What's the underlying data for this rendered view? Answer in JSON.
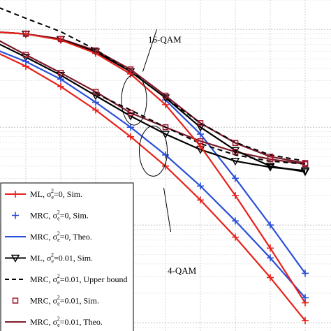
{
  "chart_data": {
    "type": "line",
    "title": "",
    "xlabel": "",
    "ylabel": "",
    "y_scale": "log",
    "grid": true,
    "legend_position": "bottom-left",
    "annotations": [
      {
        "id": "qam16",
        "text": "16-QAM"
      },
      {
        "id": "qam4",
        "text": "4-QAM"
      }
    ],
    "series": [
      {
        "name": "ML, σ_e^2=0, Sim.",
        "label_parts": [
          "ML, σ",
          "e",
          "2",
          "=0, Sim."
        ],
        "color": "#e8201a",
        "line": "solid",
        "marker": "plus",
        "points": [
          [
            0,
            0.62
          ],
          [
            1,
            0.42
          ],
          [
            2,
            0.26
          ],
          [
            3,
            0.15
          ],
          [
            4,
            0.08
          ],
          [
            5,
            0.04
          ],
          [
            6,
            0.018
          ],
          [
            7,
            0.0075
          ],
          [
            8,
            0.0029
          ],
          [
            9,
            0.00105
          ]
        ]
      },
      {
        "name": "ML, σ_e^2=0, Sim.",
        "label_parts": [
          "ML, σ",
          "e",
          "2",
          "=0, Sim."
        ],
        "color": "#e8201a",
        "line": "solid",
        "marker": "plus",
        "points": [
          [
            0,
            0.95
          ],
          [
            1,
            0.9
          ],
          [
            2,
            0.78
          ],
          [
            3,
            0.57
          ],
          [
            4,
            0.35
          ],
          [
            5,
            0.17
          ],
          [
            6,
            0.064
          ],
          [
            7,
            0.02
          ],
          [
            8,
            0.0058
          ],
          [
            9,
            0.0016
          ]
        ]
      },
      {
        "name": "MRC, σ_e^2=0, Sim.",
        "label_parts": [
          "MRC, σ",
          "e",
          "2",
          "=0, Sim."
        ],
        "color": "#2a4fd8",
        "line": "none",
        "marker": "plus",
        "points": [
          [
            1,
            0.47
          ],
          [
            2,
            0.31
          ],
          [
            3,
            0.18
          ],
          [
            4,
            0.1
          ],
          [
            5,
            0.052
          ],
          [
            6,
            0.025
          ],
          [
            7,
            0.011
          ],
          [
            8,
            0.0046
          ],
          [
            9,
            0.0018
          ]
        ]
      },
      {
        "name": "MRC, σ_e^2=0, Theo.",
        "label_parts": [
          "MRC, σ",
          "e",
          "2",
          "=0, Theo."
        ],
        "color": "#2a4fd8",
        "line": "solid",
        "marker": "none",
        "points": [
          [
            0,
            0.65
          ],
          [
            1,
            0.47
          ],
          [
            2,
            0.31
          ],
          [
            3,
            0.18
          ],
          [
            4,
            0.1
          ],
          [
            5,
            0.052
          ],
          [
            6,
            0.025
          ],
          [
            7,
            0.011
          ],
          [
            8,
            0.0046
          ],
          [
            9,
            0.0018
          ]
        ]
      },
      {
        "name": "MRC, σ_e^2=0, Theo.",
        "label_parts": [
          "MRC, σ",
          "e",
          "2",
          "=0, Theo."
        ],
        "color": "#2a4fd8",
        "line": "solid",
        "marker": "plus",
        "points": [
          [
            5,
            0.19
          ],
          [
            6,
            0.085
          ],
          [
            7,
            0.03
          ],
          [
            8,
            0.01
          ],
          [
            9,
            0.0032
          ]
        ]
      },
      {
        "name": "ML, σ_e^2=0.01, Sim.",
        "label_parts": [
          "ML, σ",
          "e",
          "2",
          "=0.01, Sim."
        ],
        "color": "#000000",
        "line": "solid",
        "marker": "triangle-down",
        "points": [
          [
            0,
            0.78
          ],
          [
            1,
            0.52
          ],
          [
            2,
            0.34
          ],
          [
            3,
            0.21
          ],
          [
            4,
            0.13
          ],
          [
            5,
            0.085
          ],
          [
            6,
            0.059
          ],
          [
            7,
            0.045
          ],
          [
            8,
            0.039
          ],
          [
            9,
            0.036
          ]
        ]
      },
      {
        "name": "ML, σ_e^2=0.01, Sim.",
        "label_parts": [
          "ML, σ",
          "e",
          "2",
          "=0.01, Sim."
        ],
        "color": "#000000",
        "line": "solid",
        "marker": "triangle-down",
        "points": [
          [
            0,
            0.95
          ],
          [
            1,
            0.9
          ],
          [
            2,
            0.79
          ],
          [
            3,
            0.59
          ],
          [
            4,
            0.37
          ],
          [
            5,
            0.2
          ],
          [
            6,
            0.1
          ],
          [
            7,
            0.058
          ],
          [
            8,
            0.04
          ],
          [
            9,
            0.035
          ]
        ]
      },
      {
        "name": "MRC, σ_e^2=0.01, Upper bound",
        "label_parts": [
          "MRC, σ",
          "e",
          "2",
          "=0.01, Upper bound"
        ],
        "color": "#000000",
        "line": "dashed",
        "marker": "none",
        "points": [
          [
            0,
            1.8
          ],
          [
            1,
            1.3
          ],
          [
            2,
            0.95
          ],
          [
            3,
            0.62
          ],
          [
            4,
            0.37
          ],
          [
            5,
            0.2
          ],
          [
            6,
            0.11
          ],
          [
            7,
            0.07
          ],
          [
            8,
            0.052
          ],
          [
            9,
            0.045
          ]
        ]
      },
      {
        "name": "MRC, σ_e^2=0.01, Upper bound",
        "label_parts": [
          "MRC, σ",
          "e",
          "2",
          "=0.01, Upper bound"
        ],
        "color": "#000000",
        "line": "dashed",
        "marker": "none",
        "points": [
          [
            3,
            0.22
          ],
          [
            4,
            0.15
          ],
          [
            5,
            0.1
          ],
          [
            6,
            0.068
          ],
          [
            7,
            0.052
          ],
          [
            8,
            0.045
          ],
          [
            9,
            0.042
          ]
        ]
      },
      {
        "name": "MRC, σ_e^2=0.01, Sim.",
        "label_parts": [
          "MRC, σ",
          "e",
          "2",
          "=0.01, Sim."
        ],
        "color": "#a0162c",
        "line": "none",
        "marker": "square",
        "points": [
          [
            0,
            0.85
          ],
          [
            1,
            0.55
          ],
          [
            2,
            0.36
          ],
          [
            3,
            0.23
          ],
          [
            4,
            0.14
          ],
          [
            5,
            0.1
          ],
          [
            6,
            0.072
          ],
          [
            7,
            0.056
          ],
          [
            8,
            0.047
          ],
          [
            9,
            0.042
          ]
        ]
      },
      {
        "name": "MRC, σ_e^2=0.01, Sim.",
        "label_parts": [
          "MRC, σ",
          "e",
          "2",
          "=0.01, Sim."
        ],
        "color": "#a0162c",
        "line": "none",
        "marker": "square",
        "points": [
          [
            0,
            0.95
          ],
          [
            1,
            0.9
          ],
          [
            2,
            0.8
          ],
          [
            3,
            0.61
          ],
          [
            4,
            0.39
          ],
          [
            5,
            0.21
          ],
          [
            6,
            0.11
          ],
          [
            7,
            0.069
          ],
          [
            8,
            0.05
          ],
          [
            9,
            0.043
          ]
        ]
      },
      {
        "name": "MRC, σ_e^2=0.01, Theo.",
        "label_parts": [
          "MRC, σ",
          "e",
          "2",
          "=0.01, Theo."
        ],
        "color": "#7b1a2a",
        "line": "solid",
        "marker": "none",
        "points": [
          [
            0,
            0.85
          ],
          [
            1,
            0.55
          ],
          [
            2,
            0.36
          ],
          [
            3,
            0.23
          ],
          [
            4,
            0.14
          ],
          [
            5,
            0.1
          ],
          [
            6,
            0.072
          ],
          [
            7,
            0.056
          ],
          [
            8,
            0.047
          ],
          [
            9,
            0.042
          ]
        ]
      },
      {
        "name": "MRC, σ_e^2=0.01, Theo.",
        "label_parts": [
          "MRC, σ",
          "e",
          "2",
          "=0.01, Theo."
        ],
        "color": "#7b1a2a",
        "line": "solid",
        "marker": "none",
        "points": [
          [
            0,
            0.95
          ],
          [
            1,
            0.9
          ],
          [
            2,
            0.8
          ],
          [
            3,
            0.61
          ],
          [
            4,
            0.39
          ],
          [
            5,
            0.21
          ],
          [
            6,
            0.11
          ],
          [
            7,
            0.069
          ],
          [
            8,
            0.05
          ],
          [
            9,
            0.043
          ]
        ]
      }
    ],
    "legend": [
      {
        "parts": [
          "ML, σ",
          "e",
          "2",
          "=0, Sim."
        ],
        "color": "#e8201a",
        "line": "solid",
        "marker": "plus"
      },
      {
        "parts": [
          "MRC, σ",
          "e",
          "2",
          "=0, Sim."
        ],
        "color": "#2a4fd8",
        "line": "none",
        "marker": "plus"
      },
      {
        "parts": [
          "MRC, σ",
          "e",
          "2",
          "=0, Theo."
        ],
        "color": "#2a4fd8",
        "line": "solid",
        "marker": "none"
      },
      {
        "parts": [
          "ML, σ",
          "e",
          "2",
          "=0.01, Sim."
        ],
        "color": "#000000",
        "line": "solid",
        "marker": "triangle-down"
      },
      {
        "parts": [
          "MRC, σ",
          "e",
          "2",
          "=0.01, Upper bound"
        ],
        "color": "#000000",
        "line": "dashed",
        "marker": "none"
      },
      {
        "parts": [
          "MRC, σ",
          "e",
          "2",
          "=0.01, Sim."
        ],
        "color": "#a0162c",
        "line": "none",
        "marker": "square"
      },
      {
        "parts": [
          "MRC, σ",
          "e",
          "2",
          "=0.01, Theo."
        ],
        "color": "#7b1a2a",
        "line": "solid",
        "marker": "none"
      }
    ]
  }
}
